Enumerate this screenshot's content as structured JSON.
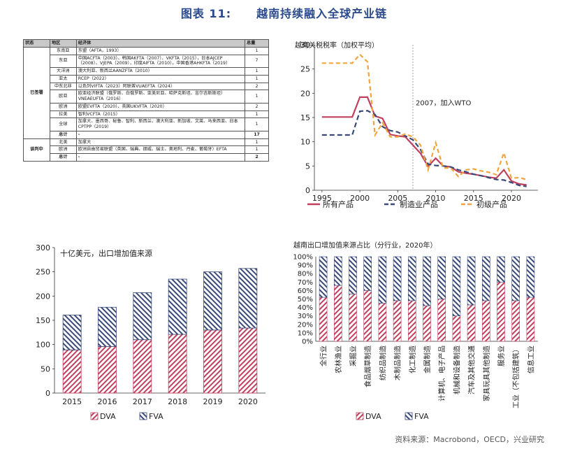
{
  "figure_title": {
    "label": "图表 11:",
    "text": "越南持续融入全球产业链"
  },
  "table": {
    "headers": [
      "状态",
      "地区",
      "经济体",
      "总量"
    ],
    "groups": [
      {
        "status": "已签署",
        "rows": [
          {
            "region": "东南亚",
            "economies": "东盟（AFTA，1993）",
            "count": "1"
          },
          {
            "region": "东亚",
            "economies": "中国ACFTA（2003）、韩国AKFTA（2007）、VKFTA（2015），日本AJCEP（2008）、VJEPA（2009），印度AIFTA（2010），中国香港AHKFTA（2019）",
            "count": "7"
          },
          {
            "region": "大洋洲",
            "economies": "澳大利亚、新西兰AANZFTA（2010）",
            "count": "1"
          },
          {
            "region": "亚太",
            "economies": "RCEP（2022）",
            "count": "1"
          },
          {
            "region": "中东北非",
            "economies": "以色列VIFTA（2023）阿联酋VUAEFTA（2024）",
            "count": "2"
          },
          {
            "region": "欧亚",
            "economies": "欧亚经济联盟（俄罗斯、白俄罗斯、亚美尼亚、哈萨克斯坦、吉尔吉斯斯坦）VNEAEUFTA（2016）",
            "count": "1"
          },
          {
            "region": "欧洲",
            "economies": "欧盟EVFTA（2020）、英国UKVFTA（2020）",
            "count": "2"
          },
          {
            "region": "拉美",
            "economies": "智利VCFTA（2015）",
            "count": "1"
          },
          {
            "region": "全球",
            "economies": "加拿大、墨西哥、秘鲁、智利、新西兰、澳大利亚、新加坡、文莱、马来西亚、日本CPTPP（2019）",
            "count": "1"
          },
          {
            "region": "总计",
            "economies": "-",
            "count": "17",
            "total": true
          }
        ]
      },
      {
        "status": "谈判中",
        "rows": [
          {
            "region": "北美",
            "economies": "加拿大",
            "count": "1"
          },
          {
            "region": "欧洲",
            "economies": "欧洲自由贸易联盟（英国、瑞典、挪威、瑞士、奥地利、丹麦、葡萄牙）EFTA",
            "count": "1"
          },
          {
            "region": "总计",
            "economies": "-",
            "count": "2",
            "total": true
          }
        ]
      }
    ]
  },
  "chart_data": [
    {
      "type": "line",
      "title": "越南关税税率（加权平均）",
      "x": [
        1995,
        1996,
        1997,
        1998,
        1999,
        2000,
        2001,
        2002,
        2003,
        2004,
        2005,
        2006,
        2007,
        2008,
        2009,
        2010,
        2011,
        2012,
        2013,
        2014,
        2015,
        2016,
        2017,
        2018,
        2019,
        2020,
        2021,
        2022
      ],
      "series": [
        {
          "name": "所有产品",
          "color": "#c0405e",
          "values": [
            15.1,
            15.1,
            15.1,
            15.1,
            15.1,
            19.2,
            19.2,
            15.3,
            14.8,
            11.5,
            11.2,
            11.0,
            9.3,
            7.6,
            4.9,
            6.6,
            5.0,
            4.8,
            3.8,
            3.5,
            3.3,
            3.0,
            2.7,
            2.5,
            4.2,
            1.9,
            1.3,
            1.1
          ]
        },
        {
          "name": "制造业产品",
          "color": "#3a4a78",
          "values": [
            11.4,
            11.4,
            11.4,
            11.4,
            11.4,
            16.3,
            16.4,
            15.6,
            13.1,
            12.3,
            12.0,
            11.2,
            10.4,
            8.4,
            5.4,
            5.1,
            5.0,
            4.8,
            4.2,
            3.8,
            3.3,
            3.0,
            2.6,
            2.2,
            2.1,
            1.6,
            1.0,
            0.8
          ]
        },
        {
          "name": "初级产品",
          "color": "#f2a53c",
          "values": [
            26.2,
            26.2,
            26.2,
            26.2,
            26.2,
            28.0,
            26.5,
            11.4,
            13.9,
            11.0,
            11.0,
            11.6,
            11.0,
            9.3,
            4.2,
            9.8,
            4.6,
            4.6,
            2.8,
            4.2,
            4.4,
            4.0,
            3.7,
            3.2,
            7.7,
            2.5,
            2.6,
            2.2
          ]
        }
      ],
      "xlim": [
        1994,
        2023.5
      ],
      "ylim": [
        0,
        30
      ],
      "xticks": [
        1995,
        2000,
        2005,
        2010,
        2015,
        2020
      ],
      "yticks": [
        0,
        5,
        10,
        15,
        20,
        25,
        30
      ],
      "annotation": {
        "x": 2007,
        "label": "2007，加入WTO"
      },
      "legend": "bottom"
    },
    {
      "type": "bar",
      "stacked": true,
      "title": "十亿美元，出口增加值来源",
      "categories": [
        "2015",
        "2016",
        "2017",
        "2018",
        "2019",
        "2020"
      ],
      "series": [
        {
          "name": "DVA",
          "color": "#c0405e",
          "values": [
            89,
            96,
            110,
            121,
            130,
            134
          ]
        },
        {
          "name": "FVA",
          "color": "#3a4a78",
          "values": [
            72,
            81,
            97,
            114,
            120,
            123
          ]
        }
      ],
      "ylim": [
        0,
        300
      ],
      "yticks": [
        0,
        50,
        100,
        150,
        200,
        250,
        300
      ],
      "legend": "bottom"
    },
    {
      "type": "bar",
      "stacked": true,
      "percent": true,
      "title": "越南出口增加值来源占比（分行业，2020年）",
      "categories": [
        "全行业",
        "农林渔业",
        "采掘业",
        "食品烟草制造",
        "纺织品制造",
        "木制品制造",
        "化工制造",
        "金属制造",
        "计算机、电子产品",
        "机械和设备制造",
        "汽车及其他交通",
        "家具玩具其他制造",
        "服务业",
        "工业（不包括建筑）",
        "信息工业"
      ],
      "series": [
        {
          "name": "DVA",
          "color": "#c0405e",
          "values": [
            52,
            66,
            56,
            60,
            45,
            48,
            48,
            42,
            50,
            30,
            43,
            48,
            70,
            48,
            52
          ]
        },
        {
          "name": "FVA",
          "color": "#3a4a78",
          "values": [
            48,
            34,
            44,
            40,
            55,
            52,
            52,
            58,
            50,
            70,
            57,
            52,
            30,
            52,
            48
          ]
        }
      ],
      "ylim": [
        0,
        100
      ],
      "yticks": [
        "0%",
        "10%",
        "20%",
        "30%",
        "40%",
        "50%",
        "60%",
        "70%",
        "80%",
        "90%",
        "100%"
      ],
      "legend": "bottom"
    }
  ],
  "source": "资料来源：Macrobond，OECD，兴业研究"
}
